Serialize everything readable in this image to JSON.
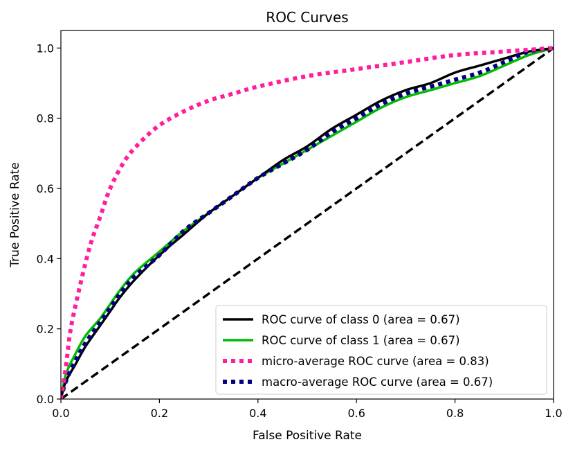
{
  "chart_data": {
    "type": "line",
    "title": "ROC Curves",
    "xlabel": "False Positive Rate",
    "ylabel": "True Positive Rate",
    "xlim": [
      0.0,
      1.0
    ],
    "ylim": [
      0.0,
      1.05
    ],
    "xticks": [
      "0.0",
      "0.2",
      "0.4",
      "0.6",
      "0.8",
      "1.0"
    ],
    "yticks": [
      "0.0",
      "0.2",
      "0.4",
      "0.6",
      "0.8",
      "1.0"
    ],
    "grid": false,
    "legend_position": "lower-right",
    "series": [
      {
        "name": "ROC curve of class 0 (area = 0.67)",
        "color": "#000000",
        "style": "solid",
        "x": [
          0.0,
          0.01,
          0.03,
          0.05,
          0.08,
          0.1,
          0.12,
          0.15,
          0.2,
          0.25,
          0.3,
          0.35,
          0.4,
          0.45,
          0.5,
          0.55,
          0.6,
          0.65,
          0.7,
          0.75,
          0.8,
          0.85,
          0.9,
          0.95,
          1.0
        ],
        "y": [
          0.0,
          0.05,
          0.1,
          0.15,
          0.21,
          0.25,
          0.29,
          0.34,
          0.41,
          0.47,
          0.53,
          0.58,
          0.63,
          0.68,
          0.72,
          0.77,
          0.81,
          0.85,
          0.88,
          0.9,
          0.93,
          0.95,
          0.97,
          0.99,
          1.0
        ]
      },
      {
        "name": "ROC curve of class 1 (area = 0.67)",
        "color": "#00bb00",
        "style": "solid",
        "x": [
          0.0,
          0.01,
          0.03,
          0.05,
          0.08,
          0.1,
          0.12,
          0.15,
          0.2,
          0.25,
          0.3,
          0.35,
          0.4,
          0.45,
          0.5,
          0.55,
          0.6,
          0.65,
          0.7,
          0.75,
          0.8,
          0.85,
          0.9,
          0.95,
          1.0
        ],
        "y": [
          0.0,
          0.07,
          0.13,
          0.18,
          0.23,
          0.27,
          0.31,
          0.36,
          0.42,
          0.48,
          0.53,
          0.58,
          0.63,
          0.67,
          0.71,
          0.75,
          0.79,
          0.83,
          0.86,
          0.88,
          0.9,
          0.92,
          0.95,
          0.98,
          1.0
        ]
      },
      {
        "name": "micro-average ROC curve (area = 0.83)",
        "color": "#ff1e9e",
        "style": "dotted",
        "x": [
          0.0,
          0.01,
          0.02,
          0.04,
          0.06,
          0.08,
          0.1,
          0.13,
          0.16,
          0.2,
          0.25,
          0.3,
          0.35,
          0.4,
          0.5,
          0.6,
          0.7,
          0.8,
          0.9,
          1.0
        ],
        "y": [
          0.0,
          0.09,
          0.2,
          0.33,
          0.44,
          0.52,
          0.6,
          0.68,
          0.73,
          0.78,
          0.82,
          0.85,
          0.87,
          0.89,
          0.92,
          0.94,
          0.96,
          0.98,
          0.99,
          1.0
        ]
      },
      {
        "name": "macro-average ROC curve (area = 0.67)",
        "color": "#000080",
        "style": "dotted",
        "x": [
          0.0,
          0.01,
          0.03,
          0.05,
          0.08,
          0.1,
          0.12,
          0.15,
          0.2,
          0.25,
          0.3,
          0.35,
          0.4,
          0.45,
          0.5,
          0.55,
          0.6,
          0.65,
          0.7,
          0.75,
          0.8,
          0.85,
          0.9,
          0.95,
          1.0
        ],
        "y": [
          0.0,
          0.05,
          0.11,
          0.16,
          0.22,
          0.26,
          0.3,
          0.35,
          0.41,
          0.48,
          0.53,
          0.58,
          0.63,
          0.67,
          0.71,
          0.76,
          0.8,
          0.84,
          0.87,
          0.89,
          0.91,
          0.93,
          0.96,
          0.99,
          1.0
        ]
      },
      {
        "name": "",
        "color": "#000000",
        "style": "dashed",
        "x": [
          0.0,
          1.0
        ],
        "y": [
          0.0,
          1.0
        ]
      }
    ]
  }
}
